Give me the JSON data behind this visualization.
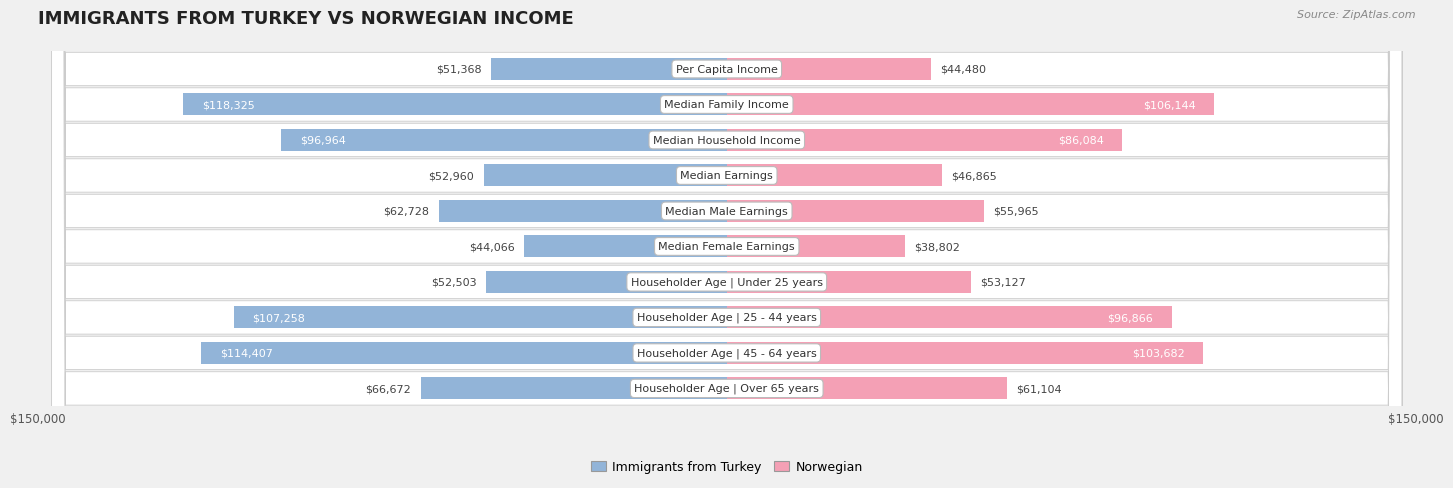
{
  "title": "IMMIGRANTS FROM TURKEY VS NORWEGIAN INCOME",
  "source": "Source: ZipAtlas.com",
  "max_value": 150000,
  "categories": [
    "Per Capita Income",
    "Median Family Income",
    "Median Household Income",
    "Median Earnings",
    "Median Male Earnings",
    "Median Female Earnings",
    "Householder Age | Under 25 years",
    "Householder Age | 25 - 44 years",
    "Householder Age | 45 - 64 years",
    "Householder Age | Over 65 years"
  ],
  "turkey_values": [
    51368,
    118325,
    96964,
    52960,
    62728,
    44066,
    52503,
    107258,
    114407,
    66672
  ],
  "norway_values": [
    44480,
    106144,
    86084,
    46865,
    55965,
    38802,
    53127,
    96866,
    103682,
    61104
  ],
  "turkey_color": "#92b4d8",
  "turkey_color_dark": "#5a8fc0",
  "norway_color": "#f4a0b5",
  "norway_color_dark": "#e06080",
  "turkey_label": "Immigrants from Turkey",
  "norway_label": "Norwegian",
  "bg_color": "#f0f0f0",
  "row_bg": "#ffffff",
  "bar_height": 0.62,
  "label_fontsize": 8.0,
  "value_fontsize": 8.0,
  "title_fontsize": 13,
  "turkey_threshold": 75000,
  "norway_threshold": 75000
}
